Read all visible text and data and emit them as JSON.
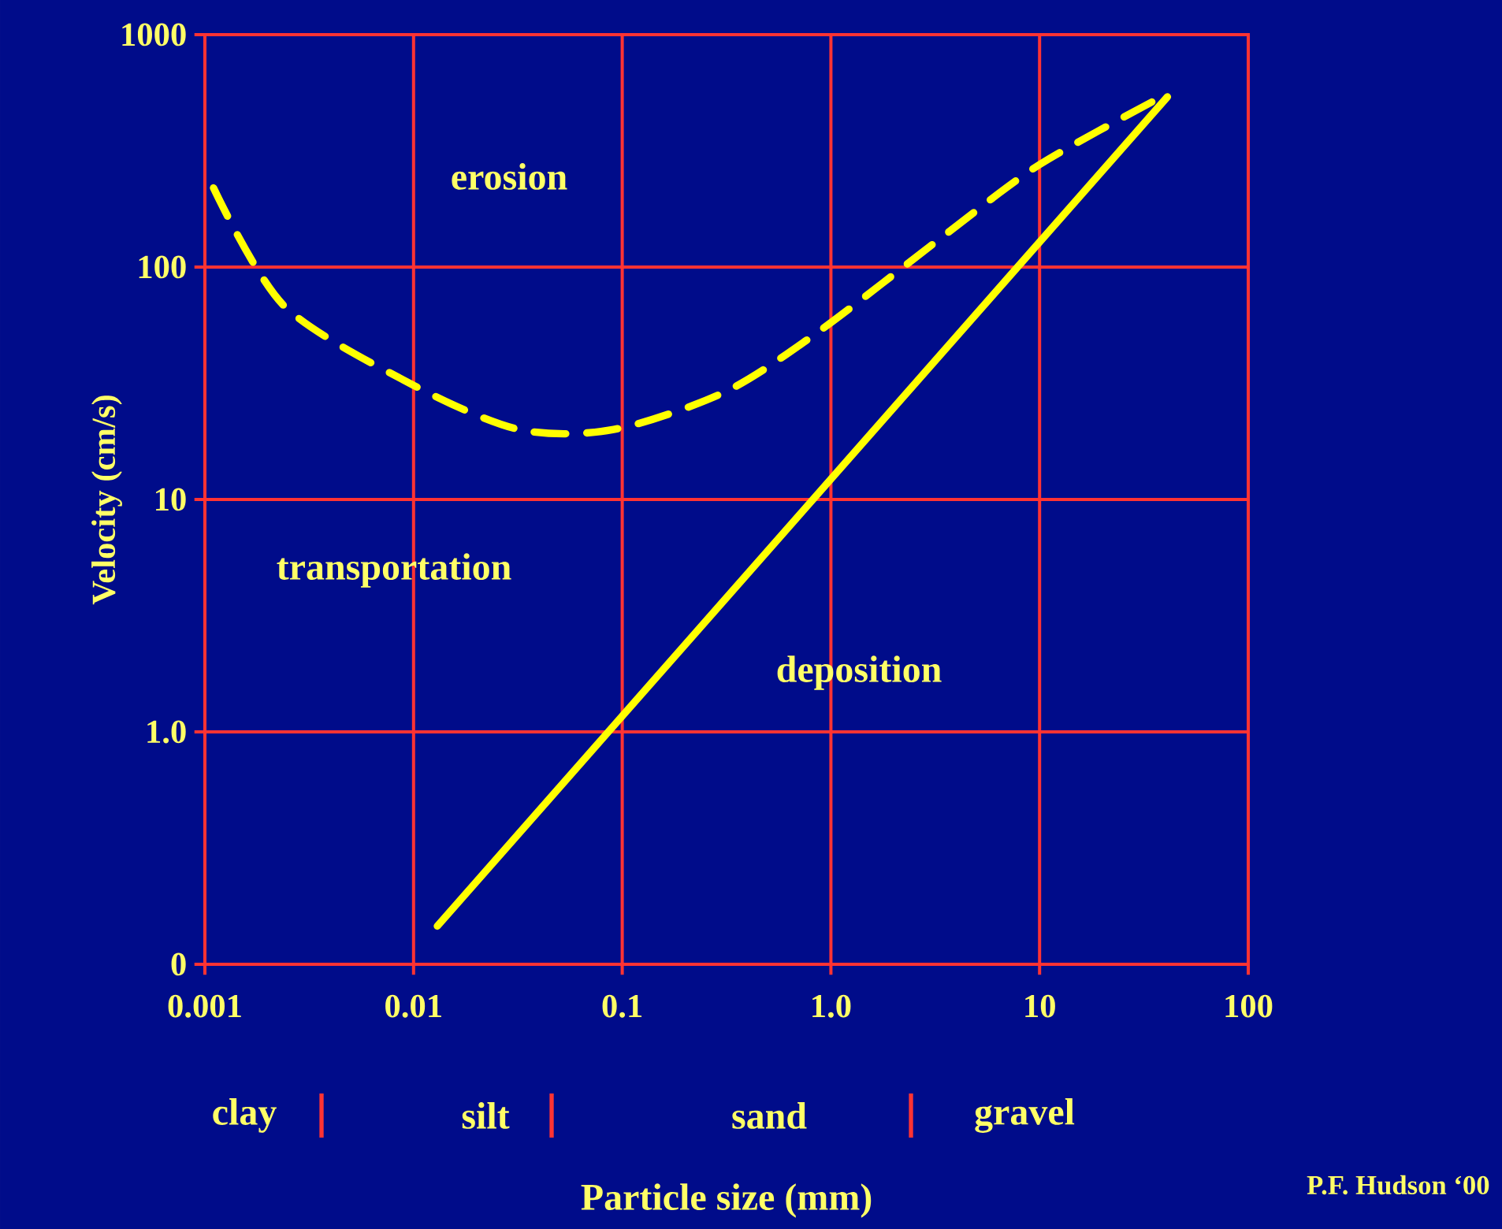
{
  "chart_data": {
    "type": "line",
    "xlabel": "Particle size (mm)",
    "ylabel": "Velocity (cm/s)",
    "log": "xy",
    "grid": true,
    "xlim": [
      0.001,
      100
    ],
    "ylim": [
      0.1,
      1000
    ],
    "xticks": [
      0.001,
      0.01,
      0.1,
      {
        "value": 1,
        "label": "1.0"
      },
      10,
      100
    ],
    "yticks": [
      {
        "value": 0.1,
        "label": "0"
      },
      {
        "value": 1,
        "label": "1.0"
      },
      10,
      100,
      1000
    ],
    "series": [
      {
        "color": "#ffff00",
        "line_style": "dashed",
        "x": [
          0.0011,
          0.0024,
          0.01,
          0.032,
          0.091,
          0.31,
          0.88,
          3.5,
          10,
          41
        ],
        "values": [
          219,
          68,
          31,
          20,
          20,
          29,
          53,
          137,
          276,
          557
        ]
      },
      {
        "color": "#ffff00",
        "line_style": "solid",
        "x": [
          0.013,
          41
        ],
        "values": [
          0.146,
          540
        ]
      }
    ],
    "annotations": [
      "erosion",
      "transportation",
      "deposition",
      "clay",
      "silt",
      "sand",
      "gravel",
      "P.F. Hudson ‘00"
    ]
  }
}
